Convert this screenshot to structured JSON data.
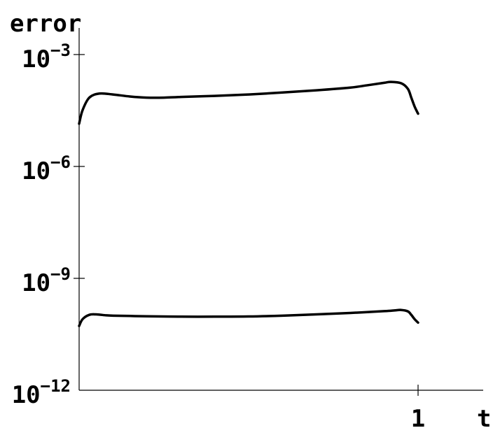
{
  "chart_data": {
    "type": "line",
    "title": "",
    "xlabel": "t",
    "ylabel": "error",
    "y_scale": "log",
    "ylim": [
      1e-12,
      0.01
    ],
    "xlim": [
      0,
      1.2
    ],
    "grid": false,
    "x_ticks": [
      {
        "value": 1,
        "label": "1"
      }
    ],
    "y_ticks": [
      {
        "value": 0.001,
        "base": "10",
        "exp": "−3"
      },
      {
        "value": 1e-06,
        "base": "10",
        "exp": "−6"
      },
      {
        "value": 1e-09,
        "base": "10",
        "exp": "−9"
      },
      {
        "value": 1e-12,
        "base": "10",
        "exp": "−12"
      }
    ],
    "series": [
      {
        "x": [
          0.0,
          0.01,
          0.03,
          0.06,
          0.1,
          0.15,
          0.2,
          0.25,
          0.3,
          0.4,
          0.5,
          0.6,
          0.7,
          0.8,
          0.85,
          0.9,
          0.92,
          0.95,
          0.97,
          0.98,
          0.99,
          1.0
        ],
        "y": [
          1.4e-05,
          3.2e-05,
          7e-05,
          9e-05,
          8.5e-05,
          7.5e-05,
          7e-05,
          7e-05,
          7.3e-05,
          7.8e-05,
          8.5e-05,
          9.6e-05,
          0.00011,
          0.00013,
          0.00015,
          0.000175,
          0.000185,
          0.00017,
          0.00012,
          7e-05,
          4e-05,
          2.6e-05
        ]
      },
      {
        "x": [
          0.0,
          0.01,
          0.03,
          0.05,
          0.08,
          0.1,
          0.15,
          0.2,
          0.3,
          0.4,
          0.5,
          0.6,
          0.7,
          0.8,
          0.9,
          0.93,
          0.95,
          0.97,
          0.98,
          0.99,
          1.0
        ],
        "y": [
          5.3e-11,
          8e-11,
          1.05e-10,
          1.08e-10,
          1.02e-10,
          1e-10,
          9.8e-11,
          9.6e-11,
          9.4e-11,
          9.4e-11,
          9.5e-11,
          1e-10,
          1.08e-10,
          1.18e-10,
          1.32e-10,
          1.38e-10,
          1.42e-10,
          1.3e-10,
          1.05e-10,
          8e-11,
          6.5e-11
        ]
      }
    ]
  }
}
